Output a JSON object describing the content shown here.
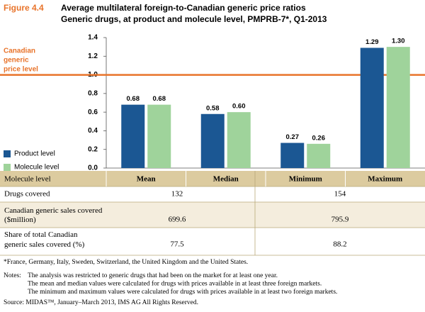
{
  "figure_label": "Figure 4.4",
  "chart_data": {
    "type": "bar",
    "title": "Average multilateral foreign-to-Canadian generic price ratios",
    "subtitle": "Generic drugs, at product and molecule level, PMPRB-7*, Q1-2013",
    "x_label": "Molecule level",
    "categories": [
      "Mean",
      "Median",
      "Minimum",
      "Maximum"
    ],
    "series": [
      {
        "name": "Product level",
        "color": "#1b5793",
        "values": [
          0.68,
          0.58,
          0.27,
          1.29
        ],
        "value_labels": [
          "0.68",
          "0.58",
          "0.27",
          "1.29"
        ]
      },
      {
        "name": "Molecule level",
        "color": "#9fd39b",
        "values": [
          0.68,
          0.6,
          0.26,
          1.3
        ],
        "value_labels": [
          "0.68",
          "0.60",
          "0.26",
          "1.30"
        ]
      }
    ],
    "ylim": [
      0,
      1.4
    ],
    "yticks": [
      {
        "value": 0,
        "label": "0.0"
      },
      0.2,
      0.4,
      0.6,
      0.8,
      {
        "value": 1,
        "label": "1.0"
      },
      1.2,
      1.4
    ],
    "grid": false,
    "legend": "bottom-left",
    "reference_line": {
      "value": 1,
      "label": [
        "Canadian",
        "generic",
        "price level"
      ],
      "color": "#e8732a"
    }
  },
  "table": {
    "rows": [
      [
        "Drugs covered",
        "132",
        "154"
      ],
      [
        "Canadian generic sales covered ($million)",
        "699.6",
        "795.9"
      ],
      [
        "Share of total Canadian generic sales covered (%)",
        "77.5",
        "88.2"
      ]
    ]
  },
  "notes": {
    "footnote": "*France, Germany, Italy, Sweden, Switzerland, the United Kingdom and the United States.",
    "label": "Notes:",
    "lines": [
      "The analysis was restricted to generic drugs that had been on the market for at least one year.",
      "The mean and median values were calculated for drugs with prices available in at least three foreign markets.",
      "The minimum and maximum values were calculated for drugs with prices available in at least two foreign markets."
    ],
    "source": "Source: MIDAS™, January–March 2013, IMS AG All Rights Reserved."
  }
}
